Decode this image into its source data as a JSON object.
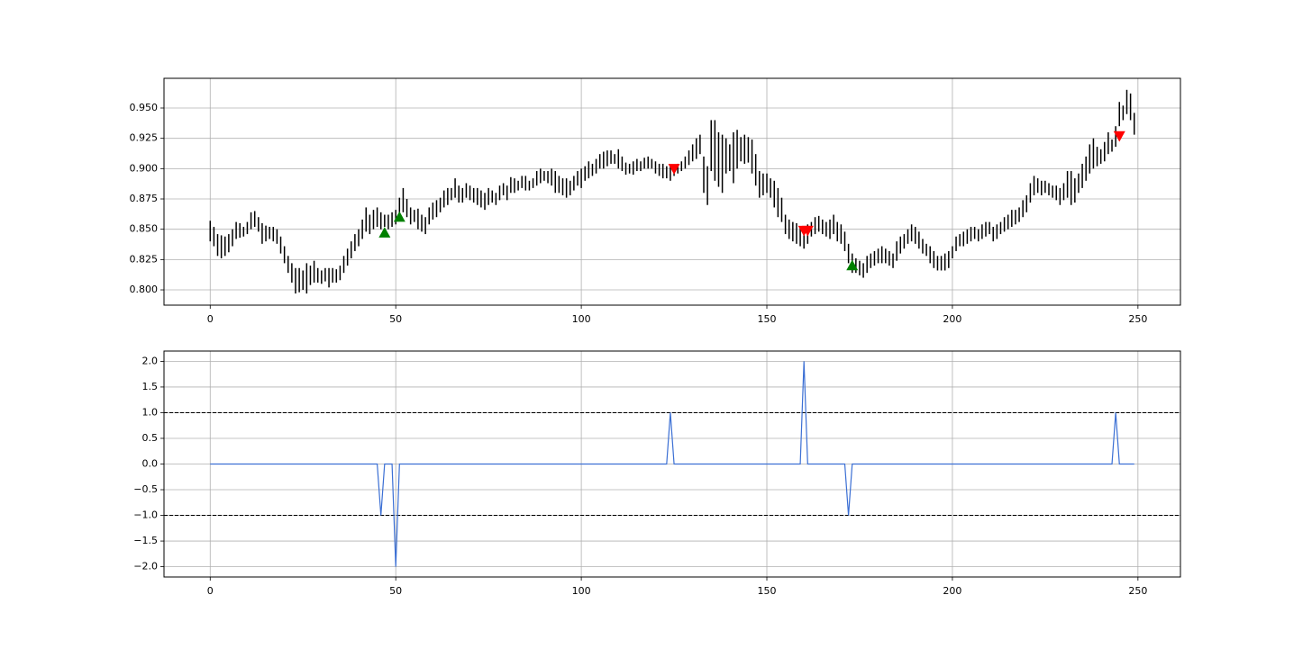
{
  "chart_data": [
    {
      "type": "range-bar",
      "bar_color": "#000000",
      "x": [
        0,
        1,
        2,
        3,
        4,
        5,
        6,
        7,
        8,
        9,
        10,
        11,
        12,
        13,
        14,
        15,
        16,
        17,
        18,
        19,
        20,
        21,
        22,
        23,
        24,
        25,
        26,
        27,
        28,
        29,
        30,
        31,
        32,
        33,
        34,
        35,
        36,
        37,
        38,
        39,
        40,
        41,
        42,
        43,
        44,
        45,
        46,
        47,
        48,
        49,
        50,
        51,
        52,
        53,
        54,
        55,
        56,
        57,
        58,
        59,
        60,
        61,
        62,
        63,
        64,
        65,
        66,
        67,
        68,
        69,
        70,
        71,
        72,
        73,
        74,
        75,
        76,
        77,
        78,
        79,
        80,
        81,
        82,
        83,
        84,
        85,
        86,
        87,
        88,
        89,
        90,
        91,
        92,
        93,
        94,
        95,
        96,
        97,
        98,
        99,
        100,
        101,
        102,
        103,
        104,
        105,
        106,
        107,
        108,
        109,
        110,
        111,
        112,
        113,
        114,
        115,
        116,
        117,
        118,
        119,
        120,
        121,
        122,
        123,
        124,
        125,
        126,
        127,
        128,
        129,
        130,
        131,
        132,
        133,
        134,
        135,
        136,
        137,
        138,
        139,
        140,
        141,
        142,
        143,
        144,
        145,
        146,
        147,
        148,
        149,
        150,
        151,
        152,
        153,
        154,
        155,
        156,
        157,
        158,
        159,
        160,
        161,
        162,
        163,
        164,
        165,
        166,
        167,
        168,
        169,
        170,
        171,
        172,
        173,
        174,
        175,
        176,
        177,
        178,
        179,
        180,
        181,
        182,
        183,
        184,
        185,
        186,
        187,
        188,
        189,
        190,
        191,
        192,
        193,
        194,
        195,
        196,
        197,
        198,
        199,
        200,
        201,
        202,
        203,
        204,
        205,
        206,
        207,
        208,
        209,
        210,
        211,
        212,
        213,
        214,
        215,
        216,
        217,
        218,
        219,
        220,
        221,
        222,
        223,
        224,
        225,
        226,
        227,
        228,
        229,
        230,
        231,
        232,
        233,
        234,
        235,
        236,
        237,
        238,
        239,
        240,
        241,
        242,
        243,
        244,
        245,
        246,
        247,
        248,
        249
      ],
      "high": [
        0.857,
        0.852,
        0.846,
        0.845,
        0.844,
        0.846,
        0.85,
        0.856,
        0.855,
        0.852,
        0.856,
        0.864,
        0.865,
        0.86,
        0.855,
        0.853,
        0.852,
        0.852,
        0.85,
        0.844,
        0.836,
        0.828,
        0.822,
        0.818,
        0.818,
        0.816,
        0.822,
        0.82,
        0.824,
        0.818,
        0.816,
        0.818,
        0.818,
        0.818,
        0.817,
        0.82,
        0.828,
        0.834,
        0.84,
        0.846,
        0.85,
        0.858,
        0.868,
        0.862,
        0.866,
        0.868,
        0.864,
        0.862,
        0.862,
        0.864,
        0.866,
        0.876,
        0.884,
        0.875,
        0.868,
        0.866,
        0.867,
        0.862,
        0.86,
        0.868,
        0.872,
        0.874,
        0.876,
        0.882,
        0.884,
        0.884,
        0.892,
        0.886,
        0.884,
        0.888,
        0.886,
        0.884,
        0.884,
        0.882,
        0.88,
        0.884,
        0.882,
        0.88,
        0.886,
        0.888,
        0.886,
        0.893,
        0.892,
        0.89,
        0.894,
        0.894,
        0.89,
        0.892,
        0.898,
        0.9,
        0.898,
        0.898,
        0.9,
        0.898,
        0.894,
        0.892,
        0.892,
        0.89,
        0.894,
        0.898,
        0.9,
        0.902,
        0.906,
        0.904,
        0.908,
        0.912,
        0.914,
        0.915,
        0.915,
        0.912,
        0.916,
        0.91,
        0.905,
        0.904,
        0.906,
        0.908,
        0.906,
        0.909,
        0.91,
        0.908,
        0.906,
        0.904,
        0.904,
        0.902,
        0.902,
        0.9,
        0.904,
        0.906,
        0.91,
        0.915,
        0.92,
        0.925,
        0.928,
        0.91,
        0.902,
        0.94,
        0.94,
        0.93,
        0.928,
        0.925,
        0.92,
        0.93,
        0.932,
        0.926,
        0.928,
        0.926,
        0.924,
        0.912,
        0.898,
        0.896,
        0.896,
        0.892,
        0.89,
        0.884,
        0.876,
        0.862,
        0.858,
        0.856,
        0.855,
        0.852,
        0.85,
        0.854,
        0.856,
        0.86,
        0.861,
        0.858,
        0.856,
        0.858,
        0.862,
        0.856,
        0.854,
        0.848,
        0.838,
        0.83,
        0.826,
        0.824,
        0.822,
        0.828,
        0.83,
        0.832,
        0.834,
        0.836,
        0.834,
        0.832,
        0.83,
        0.84,
        0.844,
        0.846,
        0.85,
        0.854,
        0.852,
        0.848,
        0.842,
        0.838,
        0.836,
        0.832,
        0.828,
        0.828,
        0.83,
        0.832,
        0.836,
        0.844,
        0.846,
        0.848,
        0.85,
        0.852,
        0.852,
        0.85,
        0.854,
        0.856,
        0.856,
        0.852,
        0.854,
        0.856,
        0.86,
        0.862,
        0.866,
        0.866,
        0.868,
        0.874,
        0.878,
        0.888,
        0.894,
        0.892,
        0.89,
        0.89,
        0.888,
        0.886,
        0.886,
        0.884,
        0.888,
        0.898,
        0.898,
        0.892,
        0.896,
        0.904,
        0.91,
        0.92,
        0.925,
        0.918,
        0.916,
        0.922,
        0.93,
        0.924,
        0.935,
        0.955,
        0.952,
        0.965,
        0.962,
        0.946
      ],
      "low": [
        0.84,
        0.836,
        0.828,
        0.826,
        0.828,
        0.831,
        0.836,
        0.842,
        0.843,
        0.844,
        0.846,
        0.85,
        0.852,
        0.848,
        0.838,
        0.84,
        0.842,
        0.84,
        0.838,
        0.83,
        0.822,
        0.814,
        0.806,
        0.797,
        0.798,
        0.8,
        0.797,
        0.804,
        0.806,
        0.806,
        0.805,
        0.807,
        0.802,
        0.806,
        0.806,
        0.808,
        0.814,
        0.82,
        0.826,
        0.832,
        0.836,
        0.842,
        0.848,
        0.846,
        0.85,
        0.852,
        0.85,
        0.852,
        0.85,
        0.852,
        0.854,
        0.858,
        0.864,
        0.86,
        0.854,
        0.856,
        0.85,
        0.848,
        0.846,
        0.854,
        0.858,
        0.86,
        0.864,
        0.868,
        0.87,
        0.874,
        0.876,
        0.872,
        0.872,
        0.876,
        0.874,
        0.872,
        0.87,
        0.868,
        0.866,
        0.87,
        0.872,
        0.87,
        0.874,
        0.878,
        0.874,
        0.88,
        0.88,
        0.882,
        0.884,
        0.882,
        0.882,
        0.884,
        0.886,
        0.888,
        0.89,
        0.888,
        0.886,
        0.88,
        0.88,
        0.878,
        0.876,
        0.878,
        0.882,
        0.886,
        0.884,
        0.89,
        0.892,
        0.894,
        0.896,
        0.9,
        0.9,
        0.902,
        0.904,
        0.904,
        0.9,
        0.898,
        0.895,
        0.896,
        0.895,
        0.898,
        0.898,
        0.9,
        0.9,
        0.9,
        0.896,
        0.894,
        0.892,
        0.892,
        0.89,
        0.894,
        0.896,
        0.898,
        0.9,
        0.903,
        0.906,
        0.908,
        0.912,
        0.88,
        0.87,
        0.898,
        0.89,
        0.885,
        0.88,
        0.896,
        0.898,
        0.888,
        0.9,
        0.906,
        0.904,
        0.905,
        0.896,
        0.886,
        0.876,
        0.878,
        0.88,
        0.876,
        0.868,
        0.86,
        0.856,
        0.846,
        0.842,
        0.84,
        0.838,
        0.836,
        0.834,
        0.838,
        0.844,
        0.846,
        0.848,
        0.846,
        0.844,
        0.842,
        0.846,
        0.84,
        0.838,
        0.832,
        0.822,
        0.814,
        0.814,
        0.812,
        0.81,
        0.814,
        0.818,
        0.82,
        0.822,
        0.822,
        0.822,
        0.82,
        0.818,
        0.824,
        0.83,
        0.834,
        0.838,
        0.84,
        0.838,
        0.834,
        0.83,
        0.828,
        0.822,
        0.818,
        0.816,
        0.816,
        0.816,
        0.818,
        0.826,
        0.832,
        0.836,
        0.836,
        0.838,
        0.84,
        0.842,
        0.84,
        0.842,
        0.844,
        0.846,
        0.84,
        0.842,
        0.846,
        0.848,
        0.85,
        0.852,
        0.854,
        0.856,
        0.86,
        0.864,
        0.872,
        0.878,
        0.88,
        0.878,
        0.88,
        0.878,
        0.876,
        0.874,
        0.87,
        0.874,
        0.876,
        0.87,
        0.872,
        0.88,
        0.884,
        0.89,
        0.896,
        0.9,
        0.902,
        0.904,
        0.906,
        0.912,
        0.914,
        0.918,
        0.935,
        0.94,
        0.945,
        0.94,
        0.928
      ],
      "markers": [
        {
          "marker": "triangle-up",
          "color": "#008000",
          "x": [
            47,
            51,
            173
          ],
          "values": [
            0.847,
            0.86,
            0.82
          ]
        },
        {
          "marker": "triangle-down",
          "color": "#ff0000",
          "x": [
            125,
            160,
            161,
            245
          ],
          "values": [
            0.9,
            0.849,
            0.849,
            0.927
          ]
        }
      ],
      "xlim": [
        -12.45,
        261.45
      ],
      "xticks": [
        0,
        50,
        100,
        150,
        200,
        250
      ],
      "ylim": [
        0.7874,
        0.9745
      ],
      "yticks": [
        {
          "value": 0.8,
          "label": "0.800"
        },
        {
          "value": 0.825,
          "label": "0.825"
        },
        {
          "value": 0.85,
          "label": "0.850"
        },
        {
          "value": 0.875,
          "label": "0.875"
        },
        {
          "value": 0.9,
          "label": "0.900"
        },
        {
          "value": 0.925,
          "label": "0.925"
        },
        {
          "value": 0.95,
          "label": "0.950"
        }
      ],
      "grid": true
    },
    {
      "type": "line",
      "color": "#3b6fd4",
      "x": [
        0,
        1,
        2,
        3,
        4,
        5,
        6,
        7,
        8,
        9,
        10,
        11,
        12,
        13,
        14,
        15,
        16,
        17,
        18,
        19,
        20,
        21,
        22,
        23,
        24,
        25,
        26,
        27,
        28,
        29,
        30,
        31,
        32,
        33,
        34,
        35,
        36,
        37,
        38,
        39,
        40,
        41,
        42,
        43,
        44,
        45,
        46,
        47,
        48,
        49,
        50,
        51,
        52,
        53,
        54,
        55,
        56,
        57,
        58,
        59,
        60,
        61,
        62,
        63,
        64,
        65,
        66,
        67,
        68,
        69,
        70,
        71,
        72,
        73,
        74,
        75,
        76,
        77,
        78,
        79,
        80,
        81,
        82,
        83,
        84,
        85,
        86,
        87,
        88,
        89,
        90,
        91,
        92,
        93,
        94,
        95,
        96,
        97,
        98,
        99,
        100,
        101,
        102,
        103,
        104,
        105,
        106,
        107,
        108,
        109,
        110,
        111,
        112,
        113,
        114,
        115,
        116,
        117,
        118,
        119,
        120,
        121,
        122,
        123,
        124,
        125,
        126,
        127,
        128,
        129,
        130,
        131,
        132,
        133,
        134,
        135,
        136,
        137,
        138,
        139,
        140,
        141,
        142,
        143,
        144,
        145,
        146,
        147,
        148,
        149,
        150,
        151,
        152,
        153,
        154,
        155,
        156,
        157,
        158,
        159,
        160,
        161,
        162,
        163,
        164,
        165,
        166,
        167,
        168,
        169,
        170,
        171,
        172,
        173,
        174,
        175,
        176,
        177,
        178,
        179,
        180,
        181,
        182,
        183,
        184,
        185,
        186,
        187,
        188,
        189,
        190,
        191,
        192,
        193,
        194,
        195,
        196,
        197,
        198,
        199,
        200,
        201,
        202,
        203,
        204,
        205,
        206,
        207,
        208,
        209,
        210,
        211,
        212,
        213,
        214,
        215,
        216,
        217,
        218,
        219,
        220,
        221,
        222,
        223,
        224,
        225,
        226,
        227,
        228,
        229,
        230,
        231,
        232,
        233,
        234,
        235,
        236,
        237,
        238,
        239,
        240,
        241,
        242,
        243,
        244,
        245,
        246,
        247,
        248,
        249
      ],
      "values": [
        0,
        0,
        0,
        0,
        0,
        0,
        0,
        0,
        0,
        0,
        0,
        0,
        0,
        0,
        0,
        0,
        0,
        0,
        0,
        0,
        0,
        0,
        0,
        0,
        0,
        0,
        0,
        0,
        0,
        0,
        0,
        0,
        0,
        0,
        0,
        0,
        0,
        0,
        0,
        0,
        0,
        0,
        0,
        0,
        0,
        0,
        -1,
        0,
        0,
        0,
        -2,
        0,
        0,
        0,
        0,
        0,
        0,
        0,
        0,
        0,
        0,
        0,
        0,
        0,
        0,
        0,
        0,
        0,
        0,
        0,
        0,
        0,
        0,
        0,
        0,
        0,
        0,
        0,
        0,
        0,
        0,
        0,
        0,
        0,
        0,
        0,
        0,
        0,
        0,
        0,
        0,
        0,
        0,
        0,
        0,
        0,
        0,
        0,
        0,
        0,
        0,
        0,
        0,
        0,
        0,
        0,
        0,
        0,
        0,
        0,
        0,
        0,
        0,
        0,
        0,
        0,
        0,
        0,
        0,
        0,
        0,
        0,
        0,
        0,
        1,
        0,
        0,
        0,
        0,
        0,
        0,
        0,
        0,
        0,
        0,
        0,
        0,
        0,
        0,
        0,
        0,
        0,
        0,
        0,
        0,
        0,
        0,
        0,
        0,
        0,
        0,
        0,
        0,
        0,
        0,
        0,
        0,
        0,
        0,
        0,
        2,
        0,
        0,
        0,
        0,
        0,
        0,
        0,
        0,
        0,
        0,
        0,
        -1,
        0,
        0,
        0,
        0,
        0,
        0,
        0,
        0,
        0,
        0,
        0,
        0,
        0,
        0,
        0,
        0,
        0,
        0,
        0,
        0,
        0,
        0,
        0,
        0,
        0,
        0,
        0,
        0,
        0,
        0,
        0,
        0,
        0,
        0,
        0,
        0,
        0,
        0,
        0,
        0,
        0,
        0,
        0,
        0,
        0,
        0,
        0,
        0,
        0,
        0,
        0,
        0,
        0,
        0,
        0,
        0,
        0,
        0,
        0,
        0,
        0,
        0,
        0,
        0,
        0,
        0,
        0,
        0,
        0,
        0,
        0,
        1,
        0,
        0,
        0,
        0,
        0
      ],
      "hlines": [
        1,
        -1
      ],
      "hline_color": "#000000",
      "xlim": [
        -12.45,
        261.45
      ],
      "xticks": [
        0,
        50,
        100,
        150,
        200,
        250
      ],
      "ylim": [
        -2.2,
        2.2
      ],
      "yticks": [
        {
          "value": -2,
          "label": "−2.0"
        },
        {
          "value": -1.5,
          "label": "−1.5"
        },
        {
          "value": -1,
          "label": "−1.0"
        },
        {
          "value": -0.5,
          "label": "−0.5"
        },
        {
          "value": 0,
          "label": "0.0"
        },
        {
          "value": 0.5,
          "label": "0.5"
        },
        {
          "value": 1,
          "label": "1.0"
        },
        {
          "value": 1.5,
          "label": "1.5"
        },
        {
          "value": 2,
          "label": "2.0"
        }
      ],
      "grid": true
    }
  ]
}
